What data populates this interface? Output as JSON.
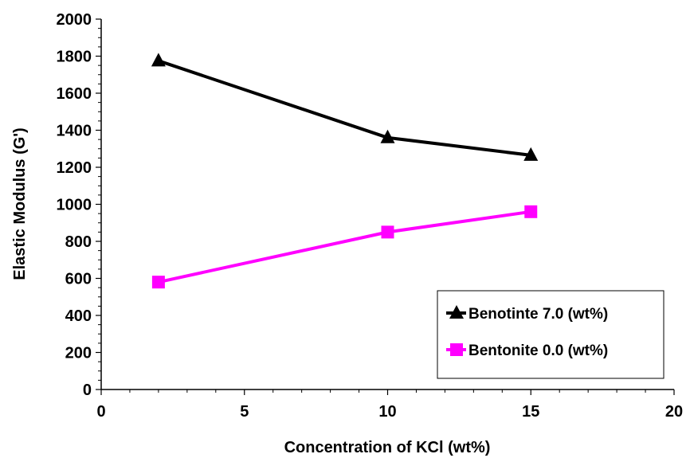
{
  "chart_data": {
    "type": "line",
    "xlabel": "Concentration of KCl (wt%)",
    "ylabel": "Elastic Modulus (G')",
    "xlim": [
      0,
      20
    ],
    "ylim": [
      0,
      2000
    ],
    "x_ticks": [
      0,
      5,
      10,
      15,
      20
    ],
    "y_ticks": [
      0,
      200,
      400,
      600,
      800,
      1000,
      1200,
      1400,
      1600,
      1800,
      2000
    ],
    "grid": false,
    "legend_position": "bottom-right",
    "series": [
      {
        "name": "Benotinte 7.0 (wt%)",
        "marker": "triangle",
        "color": "#000000",
        "x": [
          2,
          10,
          15
        ],
        "y": [
          1775,
          1360,
          1265
        ]
      },
      {
        "name": "Bentonite 0.0 (wt%)",
        "marker": "square",
        "color": "#ff00ff",
        "x": [
          2,
          10,
          15
        ],
        "y": [
          580,
          850,
          960
        ]
      }
    ]
  }
}
